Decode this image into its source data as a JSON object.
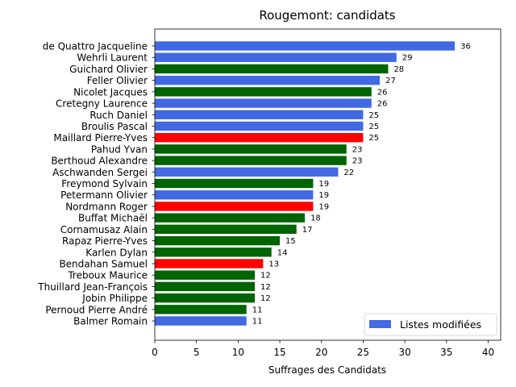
{
  "chart_data": {
    "type": "bar",
    "orientation": "horizontal",
    "title": "Rougemont: candidats",
    "xlabel": "Suffrages des Candidats",
    "ylabel": "",
    "xlim": [
      0,
      41.5
    ],
    "xticks": [
      0,
      5,
      10,
      15,
      20,
      25,
      30,
      35,
      40
    ],
    "grid": false,
    "legend": {
      "position": "bottom-right",
      "entries": [
        {
          "label": "Listes modifiées",
          "color": "#4169e1"
        }
      ]
    },
    "colors": {
      "blue": "#4169e1",
      "green": "#006400",
      "red": "#ff0000"
    },
    "categories": [
      "de Quattro Jacqueline",
      "Wehrli Laurent",
      "Guichard Olivier",
      "Feller Olivier",
      "Nicolet Jacques",
      "Cretegny Laurence",
      "Ruch Daniel",
      "Broulis Pascal",
      "Maillard Pierre-Yves",
      "Pahud Yvan",
      "Berthoud Alexandre",
      "Aschwanden Sergei",
      "Freymond Sylvain",
      "Petermann Olivier",
      "Nordmann Roger",
      "Buffat Michaël",
      "Cornamusaz Alain",
      "Rapaz Pierre-Yves",
      "Karlen Dylan",
      "Bendahan Samuel",
      "Treboux Maurice",
      "Thuillard Jean-François",
      "Jobin Philippe",
      "Pernoud Pierre André",
      "Balmer Romain"
    ],
    "values": [
      36,
      29,
      28,
      27,
      26,
      26,
      25,
      25,
      25,
      23,
      23,
      22,
      19,
      19,
      19,
      18,
      17,
      15,
      14,
      13,
      12,
      12,
      12,
      11,
      11
    ],
    "bar_colors": [
      "blue",
      "blue",
      "green",
      "blue",
      "green",
      "blue",
      "blue",
      "blue",
      "red",
      "green",
      "green",
      "blue",
      "green",
      "blue",
      "red",
      "green",
      "green",
      "green",
      "green",
      "red",
      "green",
      "green",
      "green",
      "green",
      "blue"
    ]
  }
}
